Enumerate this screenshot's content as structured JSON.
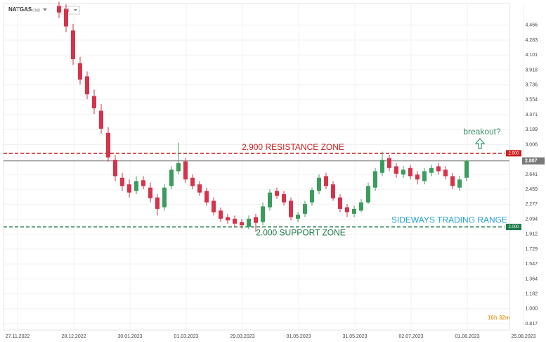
{
  "chart_data": {
    "type": "candlestick",
    "symbol": "NATGAS",
    "market": "CMD",
    "timeframe": "D1",
    "timer": "16h 32m",
    "up_color": "#3a9d5d",
    "down_color": "#d6334a",
    "grid": true,
    "xticks": [
      "27.11.2022",
      "28.12.2022",
      "30.01.2023",
      "01.03.2023",
      "29.03.2023",
      "01.05.2023",
      "31.05.2023",
      "02.07.2023",
      "01.08.2023",
      "25.08.2023"
    ],
    "ylim": [
      0.74,
      4.73
    ],
    "yticks": [
      4.466,
      4.283,
      4.101,
      3.918,
      3.736,
      3.554,
      3.371,
      3.189,
      3.006,
      2.641,
      2.459,
      2.277,
      2.094,
      1.912,
      1.729,
      1.547,
      1.364,
      1.182,
      {
        "value": 1.0,
        "label": "1.000"
      },
      0.817
    ],
    "open": [
      4.7,
      4.66,
      4.4,
      4.0,
      3.84,
      3.6,
      3.42,
      3.15,
      2.82,
      2.6,
      2.52,
      2.44,
      2.57,
      2.48,
      2.36,
      2.24,
      2.5,
      2.68,
      2.8,
      2.6,
      2.52,
      2.44,
      2.32,
      2.2,
      2.12,
      2.1,
      2.06,
      2.0,
      2.12,
      2.06,
      2.24,
      2.44,
      2.4,
      2.32,
      2.1,
      2.16,
      2.3,
      2.44,
      2.62,
      2.52,
      2.36,
      2.24,
      2.16,
      2.2,
      2.3,
      2.48,
      2.66,
      2.84,
      2.74,
      2.64,
      2.72,
      2.64,
      2.56,
      2.66,
      2.74,
      2.7,
      2.62,
      2.48,
      2.6
    ],
    "high": [
      4.75,
      4.72,
      4.48,
      4.08,
      3.9,
      3.68,
      3.5,
      3.22,
      2.88,
      2.66,
      2.58,
      2.62,
      2.62,
      2.54,
      2.4,
      2.52,
      2.74,
      3.03,
      2.84,
      2.64,
      2.56,
      2.48,
      2.36,
      2.24,
      2.16,
      2.14,
      2.1,
      2.14,
      2.16,
      2.3,
      2.46,
      2.48,
      2.44,
      2.36,
      2.18,
      2.32,
      2.48,
      2.64,
      2.66,
      2.56,
      2.4,
      2.28,
      2.26,
      2.34,
      2.54,
      2.72,
      2.92,
      2.88,
      2.78,
      2.74,
      2.76,
      2.68,
      2.72,
      2.76,
      2.78,
      2.74,
      2.66,
      2.62,
      2.82
    ],
    "low": [
      4.55,
      4.38,
      3.98,
      3.74,
      3.56,
      3.38,
      3.14,
      2.8,
      2.56,
      2.44,
      2.36,
      2.4,
      2.46,
      2.3,
      2.14,
      2.2,
      2.46,
      2.64,
      2.54,
      2.46,
      2.38,
      2.26,
      2.14,
      2.06,
      2.04,
      2.0,
      1.98,
      1.97,
      1.94,
      2.02,
      2.2,
      2.34,
      2.26,
      2.08,
      2.06,
      2.12,
      2.26,
      2.4,
      2.46,
      2.32,
      2.18,
      2.12,
      2.12,
      2.18,
      2.28,
      2.44,
      2.62,
      2.68,
      2.6,
      2.6,
      2.58,
      2.52,
      2.52,
      2.62,
      2.64,
      2.58,
      2.46,
      2.44,
      2.56
    ],
    "close": [
      4.62,
      4.45,
      4.05,
      3.8,
      3.62,
      3.45,
      3.2,
      2.85,
      2.62,
      2.5,
      2.42,
      2.56,
      2.5,
      2.35,
      2.22,
      2.48,
      2.7,
      2.78,
      2.58,
      2.5,
      2.42,
      2.3,
      2.18,
      2.1,
      2.08,
      2.04,
      2.02,
      2.1,
      2.05,
      2.25,
      2.42,
      2.38,
      2.3,
      2.12,
      2.15,
      2.28,
      2.45,
      2.6,
      2.5,
      2.35,
      2.22,
      2.18,
      2.22,
      2.3,
      2.5,
      2.68,
      2.82,
      2.72,
      2.65,
      2.7,
      2.62,
      2.58,
      2.68,
      2.72,
      2.68,
      2.62,
      2.5,
      2.58,
      2.807
    ],
    "price_line": {
      "value": 2.807,
      "label": "2.807",
      "color": "#7a7a7a"
    },
    "levels": [
      {
        "value": 2.9,
        "label": "2.900",
        "text": "2.900 RESISTANCE ZONE",
        "color": "#cc1f1f"
      },
      {
        "value": 2.0,
        "label": "2.000",
        "text": "2.000 SUPPORT ZONE",
        "color": "#1e7a4a"
      }
    ],
    "range_text": "SIDEWAYS TRADING RANGE",
    "range_color": "#2aa3d8",
    "breakout_text": "breakout?",
    "breakout_color": "#3a8f6a"
  }
}
